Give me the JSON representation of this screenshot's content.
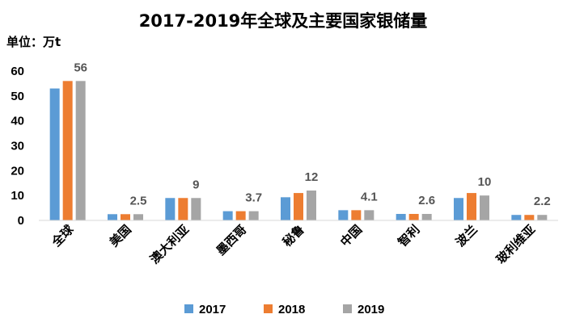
{
  "chart_data": {
    "type": "bar",
    "title": "2017-2019年全球及主要国家银储量",
    "unit_label": "单位：万t",
    "categories": [
      "全球",
      "美国",
      "澳大利亚",
      "墨西哥",
      "秘鲁",
      "中国",
      "智利",
      "波兰",
      "玻利维亚"
    ],
    "series": [
      {
        "name": "2017",
        "color": "#5b9bd5",
        "values": [
          53,
          2.5,
          9,
          3.7,
          9.3,
          4.1,
          2.6,
          9,
          2.2
        ]
      },
      {
        "name": "2018",
        "color": "#ed7d31",
        "values": [
          56,
          2.5,
          9,
          3.7,
          11,
          4.1,
          2.6,
          11,
          2.2
        ]
      },
      {
        "name": "2019",
        "color": "#a5a5a5",
        "values": [
          56,
          2.5,
          9,
          3.7,
          12,
          4.1,
          2.6,
          10,
          2.2
        ]
      }
    ],
    "data_labels": [
      "56",
      "2.5",
      "9",
      "3.7",
      "12",
      "4.1",
      "2.6",
      "10",
      "2.2"
    ],
    "yticks": [
      "0",
      "10",
      "20",
      "30",
      "40",
      "50",
      "60"
    ],
    "ylim": [
      0,
      60
    ],
    "grid": false,
    "legend_position": "bottom"
  }
}
